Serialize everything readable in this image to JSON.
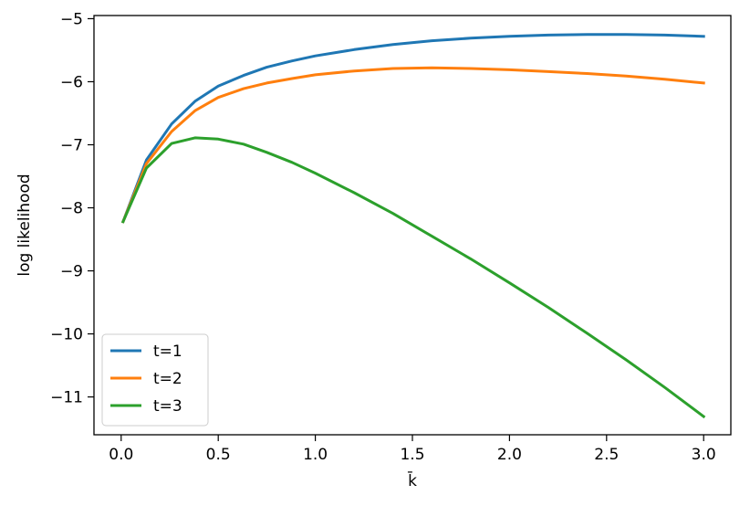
{
  "chart_data": {
    "type": "line",
    "xlabel": "k̄",
    "ylabel": "log likelihood",
    "xlim": [
      -0.14,
      3.14
    ],
    "ylim": [
      -11.6,
      -4.95
    ],
    "xticks": [
      0.0,
      0.5,
      1.0,
      1.5,
      2.0,
      2.5,
      3.0
    ],
    "xtick_labels": [
      "0.0",
      "0.5",
      "1.0",
      "1.5",
      "2.0",
      "2.5",
      "3.0"
    ],
    "yticks": [
      -5,
      -6,
      -7,
      -8,
      -9,
      -10,
      -11
    ],
    "ytick_labels": [
      "−5",
      "−6",
      "−7",
      "−8",
      "−9",
      "−10",
      "−11"
    ],
    "grid": false,
    "legend_position": "lower-left",
    "series": [
      {
        "name": "t=1",
        "color": "#1f77b4",
        "x": [
          0.01,
          0.13,
          0.26,
          0.38,
          0.5,
          0.63,
          0.75,
          0.88,
          1.0,
          1.2,
          1.4,
          1.6,
          1.8,
          2.0,
          2.2,
          2.4,
          2.6,
          2.8,
          3.0
        ],
        "y": [
          -8.22,
          -7.24,
          -6.67,
          -6.31,
          -6.07,
          -5.9,
          -5.77,
          -5.67,
          -5.59,
          -5.49,
          -5.41,
          -5.35,
          -5.31,
          -5.28,
          -5.26,
          -5.25,
          -5.25,
          -5.26,
          -5.28
        ]
      },
      {
        "name": "t=2",
        "color": "#ff7f0e",
        "x": [
          0.01,
          0.13,
          0.26,
          0.38,
          0.5,
          0.63,
          0.75,
          0.88,
          1.0,
          1.2,
          1.4,
          1.6,
          1.8,
          2.0,
          2.2,
          2.4,
          2.6,
          2.8,
          3.0
        ],
        "y": [
          -8.22,
          -7.3,
          -6.79,
          -6.46,
          -6.25,
          -6.11,
          -6.02,
          -5.95,
          -5.89,
          -5.83,
          -5.79,
          -5.78,
          -5.79,
          -5.81,
          -5.84,
          -5.87,
          -5.91,
          -5.96,
          -6.02
        ]
      },
      {
        "name": "t=3",
        "color": "#2ca02c",
        "x": [
          0.01,
          0.13,
          0.26,
          0.38,
          0.5,
          0.63,
          0.75,
          0.88,
          1.0,
          1.2,
          1.4,
          1.6,
          1.8,
          2.0,
          2.2,
          2.4,
          2.6,
          2.8,
          3.0
        ],
        "y": [
          -8.22,
          -7.37,
          -6.98,
          -6.89,
          -6.91,
          -6.99,
          -7.12,
          -7.28,
          -7.45,
          -7.76,
          -8.09,
          -8.45,
          -8.81,
          -9.19,
          -9.58,
          -9.99,
          -10.41,
          -10.85,
          -11.31
        ]
      }
    ]
  }
}
